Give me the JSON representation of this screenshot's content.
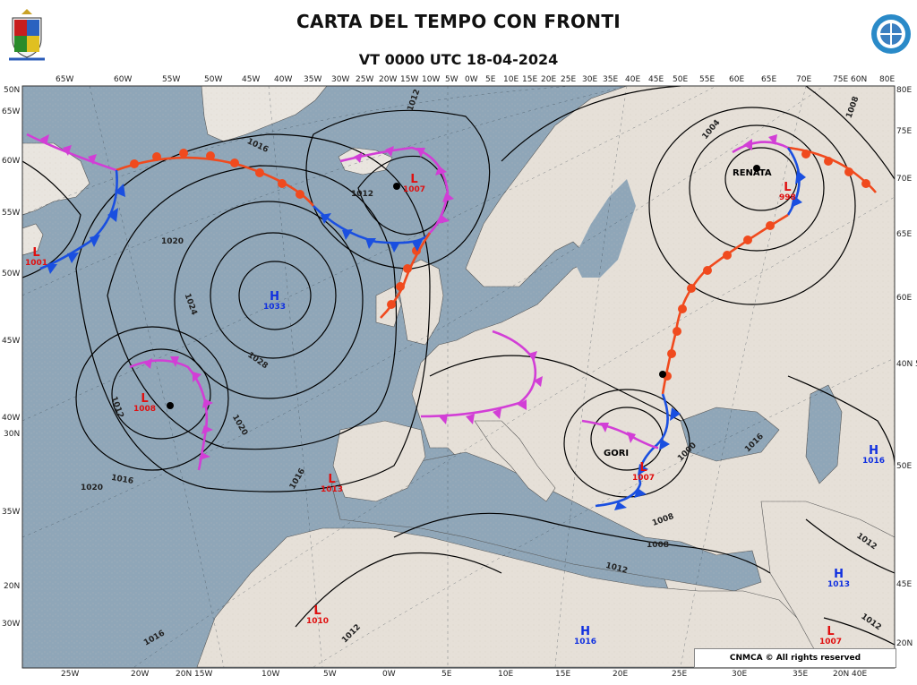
{
  "header": {
    "title": "CARTA DEL TEMPO CON FRONTI",
    "subtitle": "VT 0000 UTC 18-04-2024"
  },
  "credit": "CNMCA © All rights reserved",
  "colors": {
    "sea": "#8fa6b8",
    "land": "#e6e0d8",
    "warm_front": "#f04a1e",
    "cold_front": "#1a4fe0",
    "occluded_front": "#d23ed6",
    "low": "#e01010",
    "high": "#1030e0",
    "isobar": "#000000"
  },
  "ticks": {
    "top": [
      "65W",
      "60W",
      "55W",
      "50W",
      "45W",
      "40W",
      "35W",
      "30W",
      "25W",
      "20W",
      "15W",
      "10W",
      "5W",
      "0W",
      "5E",
      "10E",
      "15E",
      "20E",
      "25E",
      "30E",
      "35E",
      "40E",
      "45E",
      "50E",
      "55E",
      "60E",
      "65E",
      "70E",
      "75E 60N",
      "80E"
    ],
    "bottom": [
      "25W",
      "20W",
      "20N 15W",
      "10W",
      "5W",
      "0W",
      "5E",
      "10E",
      "15E",
      "20E",
      "25E",
      "30E",
      "35E",
      "20N 40E"
    ],
    "left": [
      "50N",
      "65W",
      "60W",
      "55W",
      "50W",
      "45W",
      "40W",
      "30N",
      "35W",
      "20N",
      "30W"
    ],
    "right": [
      "80E",
      "75E",
      "70E",
      "65E",
      "60E",
      "40N 55E",
      "50E",
      "45E",
      "20N"
    ]
  },
  "pressure_centers": [
    {
      "type": "L",
      "value": "1007",
      "name": ""
    },
    {
      "type": "L",
      "value": "1001",
      "name": ""
    },
    {
      "type": "H",
      "value": "1033",
      "name": ""
    },
    {
      "type": "L",
      "value": "1008",
      "name": ""
    },
    {
      "type": "L",
      "value": "1013",
      "name": ""
    },
    {
      "type": "L",
      "value": "1010",
      "name": ""
    },
    {
      "type": "H",
      "value": "1016",
      "name": ""
    },
    {
      "type": "L",
      "value": "998",
      "name": "RENATA"
    },
    {
      "type": "H",
      "value": "1016",
      "name": ""
    },
    {
      "type": "H",
      "value": "1013",
      "name": ""
    },
    {
      "type": "L",
      "value": "1007",
      "name": ""
    },
    {
      "type": "L",
      "value": "1007",
      "name": "GORI"
    }
  ],
  "isobar_labels": [
    "1012",
    "1012",
    "1016",
    "1020",
    "1024",
    "1028",
    "1016",
    "1012",
    "1020",
    "1016",
    "1012",
    "1008",
    "1004",
    "1000",
    "1008",
    "1012",
    "1016",
    "1012",
    "1008",
    "1012",
    "1016",
    "1020"
  ]
}
